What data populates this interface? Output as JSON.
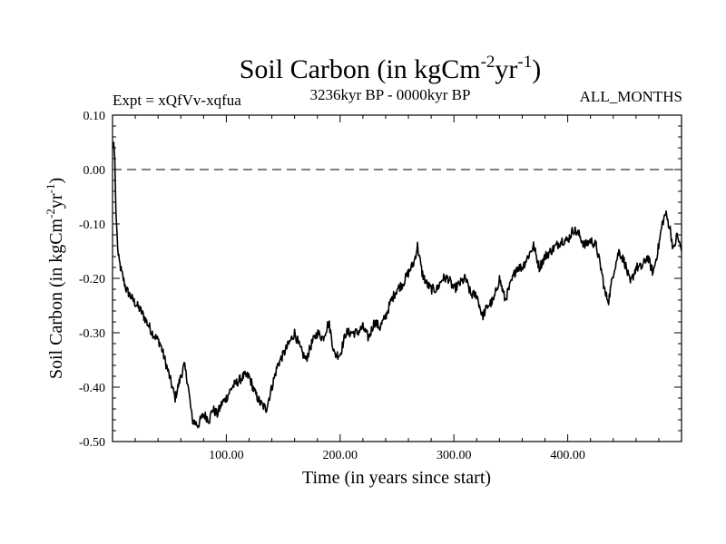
{
  "chart_data": {
    "type": "line",
    "title": "Soil Carbon (in kgCm",
    "title_sup1": "-2",
    "title_mid": "yr",
    "title_sup2": "-1",
    "title_close": ")",
    "experiment_label": "Expt = xQfVv-xqfua",
    "period_label": "3236kyr BP - 0000kyr BP",
    "season_label": "ALL_MONTHS",
    "xlabel": "Time (in years since start)",
    "ylabel": "Soil Carbon (in kgCm",
    "ylabel_sup1": "-2",
    "ylabel_mid": "yr",
    "ylabel_sup2": "-1",
    "ylabel_close": ")",
    "xlim": [
      0,
      500
    ],
    "ylim": [
      -0.5,
      0.1
    ],
    "x_ticks": [
      100,
      200,
      300,
      400
    ],
    "x_tick_labels": [
      "100.00",
      "200.00",
      "300.00",
      "400.00"
    ],
    "y_ticks": [
      0.1,
      0.0,
      -0.1,
      -0.2,
      -0.3,
      -0.4,
      -0.5
    ],
    "y_tick_labels": [
      "0.10",
      "0.00",
      "-0.10",
      "-0.20",
      "-0.30",
      "-0.40",
      "-0.50"
    ],
    "reference_line": 0.0,
    "series": [
      {
        "name": "Soil Carbon",
        "color": "#000000",
        "x": [
          0,
          1,
          2,
          3,
          5,
          8,
          12,
          18,
          25,
          30,
          35,
          42,
          50,
          55,
          60,
          63,
          66,
          70,
          75,
          80,
          85,
          88,
          92,
          96,
          100,
          105,
          110,
          115,
          120,
          125,
          130,
          135,
          140,
          145,
          150,
          155,
          160,
          165,
          170,
          175,
          180,
          185,
          190,
          195,
          200,
          205,
          210,
          215,
          220,
          225,
          230,
          235,
          240,
          245,
          250,
          255,
          260,
          265,
          268,
          272,
          276,
          280,
          285,
          290,
          295,
          300,
          305,
          310,
          315,
          320,
          325,
          330,
          335,
          340,
          345,
          350,
          355,
          360,
          365,
          370,
          375,
          380,
          385,
          390,
          395,
          400,
          405,
          410,
          415,
          420,
          425,
          428,
          430,
          433,
          436,
          440,
          445,
          450,
          455,
          460,
          465,
          470,
          475,
          480,
          483,
          486,
          490,
          493,
          496,
          500
        ],
        "y": [
          0.04,
          0.05,
          0.02,
          -0.08,
          -0.16,
          -0.19,
          -0.22,
          -0.24,
          -0.26,
          -0.28,
          -0.3,
          -0.32,
          -0.38,
          -0.42,
          -0.38,
          -0.36,
          -0.39,
          -0.46,
          -0.47,
          -0.45,
          -0.46,
          -0.44,
          -0.45,
          -0.43,
          -0.42,
          -0.4,
          -0.39,
          -0.38,
          -0.38,
          -0.41,
          -0.43,
          -0.44,
          -0.4,
          -0.36,
          -0.34,
          -0.32,
          -0.3,
          -0.33,
          -0.35,
          -0.32,
          -0.3,
          -0.31,
          -0.28,
          -0.34,
          -0.34,
          -0.3,
          -0.3,
          -0.3,
          -0.29,
          -0.31,
          -0.28,
          -0.29,
          -0.27,
          -0.24,
          -0.22,
          -0.21,
          -0.19,
          -0.17,
          -0.14,
          -0.19,
          -0.21,
          -0.22,
          -0.22,
          -0.2,
          -0.2,
          -0.22,
          -0.21,
          -0.2,
          -0.23,
          -0.23,
          -0.27,
          -0.25,
          -0.24,
          -0.2,
          -0.24,
          -0.21,
          -0.18,
          -0.18,
          -0.16,
          -0.14,
          -0.18,
          -0.16,
          -0.15,
          -0.14,
          -0.13,
          -0.13,
          -0.11,
          -0.12,
          -0.14,
          -0.13,
          -0.14,
          -0.17,
          -0.19,
          -0.23,
          -0.24,
          -0.19,
          -0.15,
          -0.17,
          -0.21,
          -0.18,
          -0.18,
          -0.16,
          -0.19,
          -0.14,
          -0.1,
          -0.08,
          -0.11,
          -0.15,
          -0.12,
          -0.15
        ]
      }
    ]
  }
}
